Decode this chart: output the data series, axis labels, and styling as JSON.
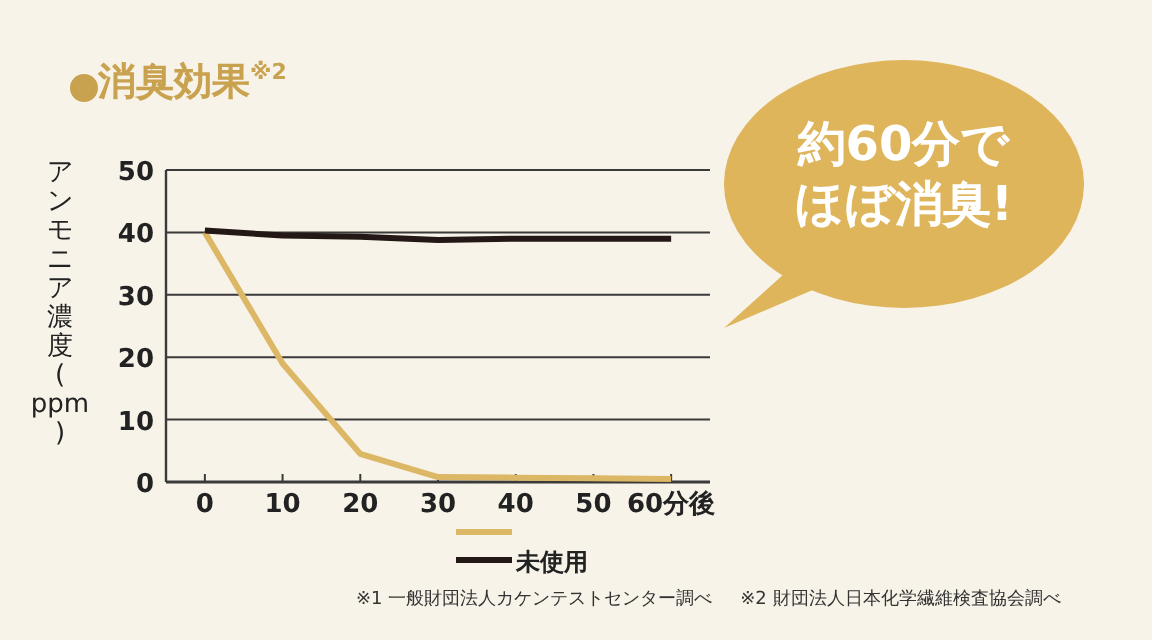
{
  "chart_data": {
    "type": "line",
    "title": "消臭効果$^{※2}$",
    "ylabel": "アンモニア濃度(ppm)",
    "x": [
      0,
      10,
      20,
      30,
      40,
      50,
      60
    ],
    "xlim": [
      -5,
      65
    ],
    "xticks": [
      0,
      10,
      20,
      30,
      40,
      50,
      {
        "value": 60,
        "label": "60分後"
      }
    ],
    "ylim": [
      0,
      50
    ],
    "yticks": [
      0,
      10,
      20,
      30,
      40,
      50
    ],
    "grid": "y",
    "legend": "bottom",
    "marker": "none",
    "line_style": "solid",
    "series": [
      {
        "color": "#dcb765",
        "values": [
          40,
          19,
          4.5,
          0.8,
          0.7,
          0.6,
          0.5
        ]
      },
      {
        "name": "未使用",
        "color": "#231815",
        "values": [
          40.3,
          39.5,
          39.3,
          38.8,
          39,
          39,
          39
        ]
      }
    ],
    "annotations": [
      "約60分でほぼ消臭!",
      "※1 一般財団法人カケンテストセンター調べ",
      "※2 財団法人日本化学繊維検査協会調べ"
    ]
  }
}
